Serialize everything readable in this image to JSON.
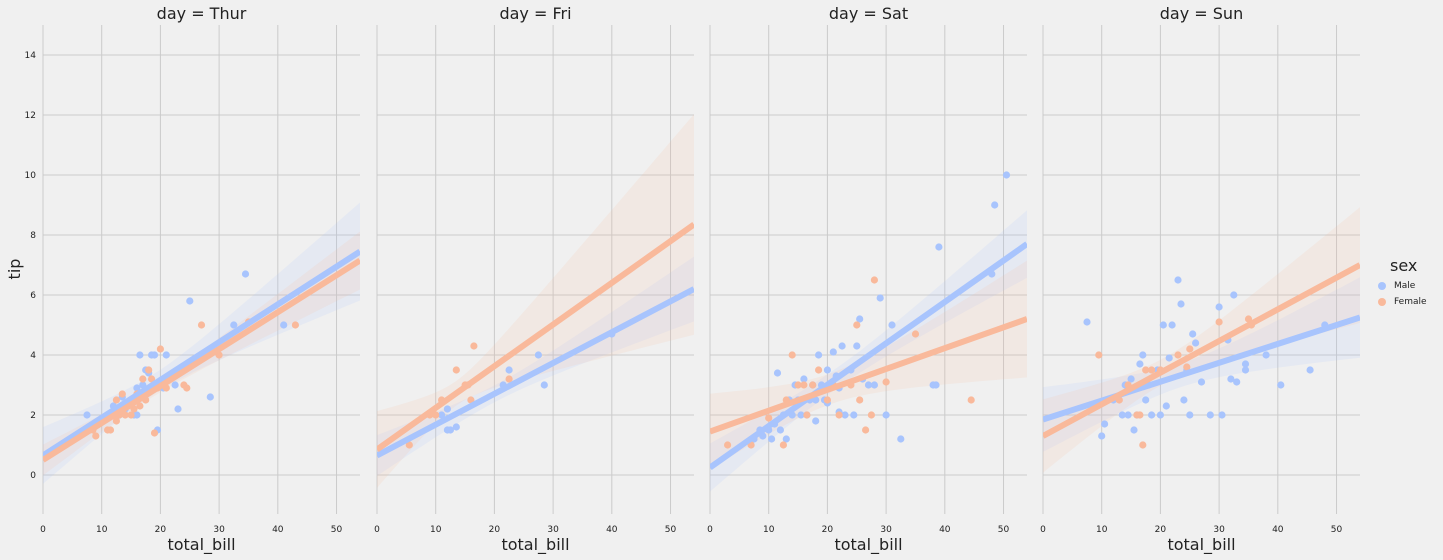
{
  "chart_data": {
    "type": "scatter",
    "fit": "linear regression with confidence band",
    "xlabel": "total_bill",
    "ylabel": "tip",
    "xlim": [
      0,
      54
    ],
    "ylim": [
      -1.3,
      15
    ],
    "xticks": [
      0,
      10,
      20,
      30,
      40,
      50
    ],
    "yticks": [
      0,
      2,
      4,
      6,
      8,
      10,
      12,
      14
    ],
    "grid": true,
    "legend": {
      "title": "sex",
      "placement": "right",
      "items": [
        {
          "name": "Male",
          "color": "#a8c4fd"
        },
        {
          "name": "Female",
          "color": "#f9b99b"
        }
      ]
    },
    "panels": [
      {
        "title": "day = Thur",
        "series": [
          {
            "name": "Male",
            "color": "#a8c4fd",
            "fit": [
              [
                0,
                0.65
              ],
              [
                54,
                7.45
              ]
            ],
            "points": [
              [
                7.5,
                2.0
              ],
              [
                10.1,
                1.8
              ],
              [
                11.0,
                1.9
              ],
              [
                12.0,
                2.3
              ],
              [
                13.0,
                2.0
              ],
              [
                14.0,
                2.2
              ],
              [
                15.0,
                2.5
              ],
              [
                15.5,
                2.0
              ],
              [
                16.0,
                2.0
              ],
              [
                16.5,
                4.0
              ],
              [
                17.0,
                3.0
              ],
              [
                18.0,
                3.4
              ],
              [
                18.5,
                4.0
              ],
              [
                19.0,
                4.0
              ],
              [
                19.5,
                1.5
              ],
              [
                20.0,
                3.0
              ],
              [
                20.5,
                2.9
              ],
              [
                21.0,
                4.0
              ],
              [
                22.5,
                3.0
              ],
              [
                23.0,
                2.2
              ],
              [
                25.0,
                5.8
              ],
              [
                28.5,
                2.6
              ],
              [
                32.5,
                5.0
              ],
              [
                34.5,
                6.7
              ],
              [
                41.0,
                5.0
              ],
              [
                16.0,
                2.9
              ],
              [
                17.5,
                3.5
              ],
              [
                13.5,
                2.6
              ]
            ]
          },
          {
            "name": "Female",
            "color": "#f9b99b",
            "fit": [
              [
                0,
                0.5
              ],
              [
                54,
                7.15
              ]
            ],
            "points": [
              [
                8.5,
                1.5
              ],
              [
                9.0,
                1.3
              ],
              [
                10.0,
                1.8
              ],
              [
                11.0,
                1.5
              ],
              [
                11.5,
                1.5
              ],
              [
                12.0,
                2.0
              ],
              [
                12.5,
                2.5
              ],
              [
                13.0,
                2.0
              ],
              [
                13.5,
                2.7
              ],
              [
                14.0,
                2.0
              ],
              [
                14.5,
                2.3
              ],
              [
                15.0,
                2.0
              ],
              [
                16.0,
                2.7
              ],
              [
                16.5,
                2.3
              ],
              [
                17.0,
                3.2
              ],
              [
                17.5,
                2.5
              ],
              [
                18.0,
                3.5
              ],
              [
                18.5,
                3.2
              ],
              [
                19.0,
                1.4
              ],
              [
                19.5,
                2.9
              ],
              [
                20.0,
                4.2
              ],
              [
                20.5,
                3.0
              ],
              [
                21.0,
                2.9
              ],
              [
                24.0,
                3.0
              ],
              [
                24.5,
                2.9
              ],
              [
                27.0,
                5.0
              ],
              [
                30.0,
                4.0
              ],
              [
                35.0,
                5.1
              ],
              [
                43.0,
                5.0
              ],
              [
                12.5,
                1.8
              ],
              [
                15.5,
                2.2
              ]
            ]
          }
        ]
      },
      {
        "title": "day = Fri",
        "series": [
          {
            "name": "Male",
            "color": "#a8c4fd",
            "fit": [
              [
                0,
                0.65
              ],
              [
                54,
                6.2
              ]
            ],
            "points": [
              [
                11.0,
                2.0
              ],
              [
                12.0,
                2.2
              ],
              [
                12.0,
                1.5
              ],
              [
                12.5,
                1.5
              ],
              [
                13.5,
                1.6
              ],
              [
                21.5,
                3.0
              ],
              [
                22.5,
                3.5
              ],
              [
                27.5,
                4.0
              ],
              [
                28.5,
                3.0
              ],
              [
                40.0,
                4.7
              ]
            ]
          },
          {
            "name": "Female",
            "color": "#f9b99b",
            "fit": [
              [
                0,
                0.85
              ],
              [
                54,
                8.35
              ]
            ],
            "points": [
              [
                5.5,
                1.0
              ],
              [
                9.0,
                2.0
              ],
              [
                10.0,
                2.0
              ],
              [
                11.0,
                2.5
              ],
              [
                13.5,
                3.5
              ],
              [
                15.0,
                3.0
              ],
              [
                16.0,
                2.5
              ],
              [
                16.5,
                4.3
              ],
              [
                22.5,
                3.2
              ],
              [
                15.5,
                3.0
              ]
            ]
          }
        ]
      },
      {
        "title": "day = Sat",
        "series": [
          {
            "name": "Male",
            "color": "#a8c4fd",
            "fit": [
              [
                0,
                0.25
              ],
              [
                54,
                7.7
              ]
            ],
            "points": [
              [
                7.5,
                1.2
              ],
              [
                8.5,
                1.5
              ],
              [
                9.0,
                1.3
              ],
              [
                10.0,
                1.5
              ],
              [
                10.5,
                1.2
              ],
              [
                11.0,
                1.7
              ],
              [
                11.5,
                3.4
              ],
              [
                12.0,
                1.5
              ],
              [
                12.5,
                2.0
              ],
              [
                13.0,
                1.2
              ],
              [
                13.5,
                2.5
              ],
              [
                14.0,
                2.0
              ],
              [
                14.5,
                3.0
              ],
              [
                15.0,
                2.5
              ],
              [
                15.5,
                2.0
              ],
              [
                16.0,
                3.2
              ],
              [
                16.5,
                2.0
              ],
              [
                17.0,
                2.5
              ],
              [
                17.5,
                3.0
              ],
              [
                18.0,
                2.5
              ],
              [
                18.5,
                4.0
              ],
              [
                19.0,
                3.0
              ],
              [
                19.5,
                2.5
              ],
              [
                20.0,
                3.5
              ],
              [
                20.5,
                3.0
              ],
              [
                21.0,
                4.1
              ],
              [
                21.5,
                3.3
              ],
              [
                22.0,
                2.9
              ],
              [
                22.5,
                4.3
              ],
              [
                23.0,
                2.0
              ],
              [
                24.0,
                3.5
              ],
              [
                24.5,
                2.0
              ],
              [
                25.0,
                4.3
              ],
              [
                25.5,
                5.2
              ],
              [
                26.0,
                3.2
              ],
              [
                27.0,
                3.0
              ],
              [
                28.0,
                3.0
              ],
              [
                29.0,
                5.9
              ],
              [
                30.0,
                2.0
              ],
              [
                31.0,
                5.0
              ],
              [
                32.5,
                1.2
              ],
              [
                38.0,
                3.0
              ],
              [
                38.5,
                3.0
              ],
              [
                39.0,
                7.6
              ],
              [
                48.5,
                9.0
              ],
              [
                50.5,
                10.0
              ],
              [
                48.0,
                6.7
              ],
              [
                16.0,
                2.5
              ],
              [
                18.0,
                1.8
              ],
              [
                20.0,
                2.4
              ],
              [
                22.0,
                2.1
              ]
            ]
          },
          {
            "name": "Female",
            "color": "#f9b99b",
            "fit": [
              [
                0,
                1.45
              ],
              [
                54,
                5.2
              ]
            ],
            "points": [
              [
                3.0,
                1.0
              ],
              [
                7.0,
                1.0
              ],
              [
                10.0,
                1.9
              ],
              [
                12.5,
                1.0
              ],
              [
                13.0,
                2.5
              ],
              [
                14.0,
                4.0
              ],
              [
                15.0,
                3.0
              ],
              [
                16.0,
                3.0
              ],
              [
                17.5,
                3.0
              ],
              [
                18.5,
                3.5
              ],
              [
                20.0,
                2.5
              ],
              [
                21.0,
                3.0
              ],
              [
                22.0,
                2.0
              ],
              [
                24.0,
                3.0
              ],
              [
                25.0,
                5.0
              ],
              [
                25.5,
                2.5
              ],
              [
                26.5,
                1.5
              ],
              [
                27.5,
                2.0
              ],
              [
                28.0,
                6.5
              ],
              [
                30.0,
                3.1
              ],
              [
                35.0,
                4.7
              ],
              [
                44.5,
                2.5
              ],
              [
                16.5,
                2.0
              ]
            ]
          }
        ]
      },
      {
        "title": "day = Sun",
        "series": [
          {
            "name": "Male",
            "color": "#a8c4fd",
            "fit": [
              [
                0,
                1.85
              ],
              [
                54,
                5.25
              ]
            ],
            "points": [
              [
                7.5,
                5.1
              ],
              [
                10.0,
                1.3
              ],
              [
                10.5,
                1.7
              ],
              [
                12.0,
                2.5
              ],
              [
                13.5,
                2.0
              ],
              [
                14.0,
                3.0
              ],
              [
                14.5,
                2.0
              ],
              [
                15.0,
                3.2
              ],
              [
                15.5,
                1.5
              ],
              [
                16.0,
                2.0
              ],
              [
                16.5,
                3.7
              ],
              [
                17.0,
                4.0
              ],
              [
                17.5,
                2.5
              ],
              [
                18.0,
                3.0
              ],
              [
                18.5,
                2.0
              ],
              [
                19.5,
                3.5
              ],
              [
                20.0,
                2.0
              ],
              [
                20.5,
                5.0
              ],
              [
                21.0,
                2.3
              ],
              [
                21.5,
                3.9
              ],
              [
                22.0,
                5.0
              ],
              [
                23.0,
                6.5
              ],
              [
                23.5,
                5.7
              ],
              [
                24.0,
                2.5
              ],
              [
                25.0,
                2.0
              ],
              [
                25.5,
                4.7
              ],
              [
                26.0,
                4.4
              ],
              [
                27.0,
                3.1
              ],
              [
                28.5,
                2.0
              ],
              [
                30.0,
                5.6
              ],
              [
                30.5,
                2.0
              ],
              [
                31.5,
                4.5
              ],
              [
                32.0,
                3.2
              ],
              [
                32.5,
                6.0
              ],
              [
                33.0,
                3.1
              ],
              [
                34.5,
                3.5
              ],
              [
                34.5,
                3.7
              ],
              [
                38.0,
                4.0
              ],
              [
                40.5,
                3.0
              ],
              [
                45.5,
                3.5
              ],
              [
                48.0,
                5.0
              ],
              [
                24.5,
                3.5
              ]
            ]
          },
          {
            "name": "Female",
            "color": "#f9b99b",
            "fit": [
              [
                0,
                1.3
              ],
              [
                54,
                7.0
              ]
            ],
            "points": [
              [
                9.5,
                4.0
              ],
              [
                11.0,
                2.5
              ],
              [
                13.0,
                2.5
              ],
              [
                16.0,
                2.0
              ],
              [
                16.5,
                2.0
              ],
              [
                17.0,
                1.0
              ],
              [
                17.5,
                3.5
              ],
              [
                18.5,
                3.5
              ],
              [
                20.0,
                3.5
              ],
              [
                23.0,
                4.0
              ],
              [
                24.5,
                3.6
              ],
              [
                25.0,
                4.2
              ],
              [
                30.0,
                5.1
              ],
              [
                35.0,
                5.2
              ],
              [
                35.5,
                5.0
              ],
              [
                14.5,
                3.0
              ]
            ]
          }
        ]
      }
    ]
  }
}
